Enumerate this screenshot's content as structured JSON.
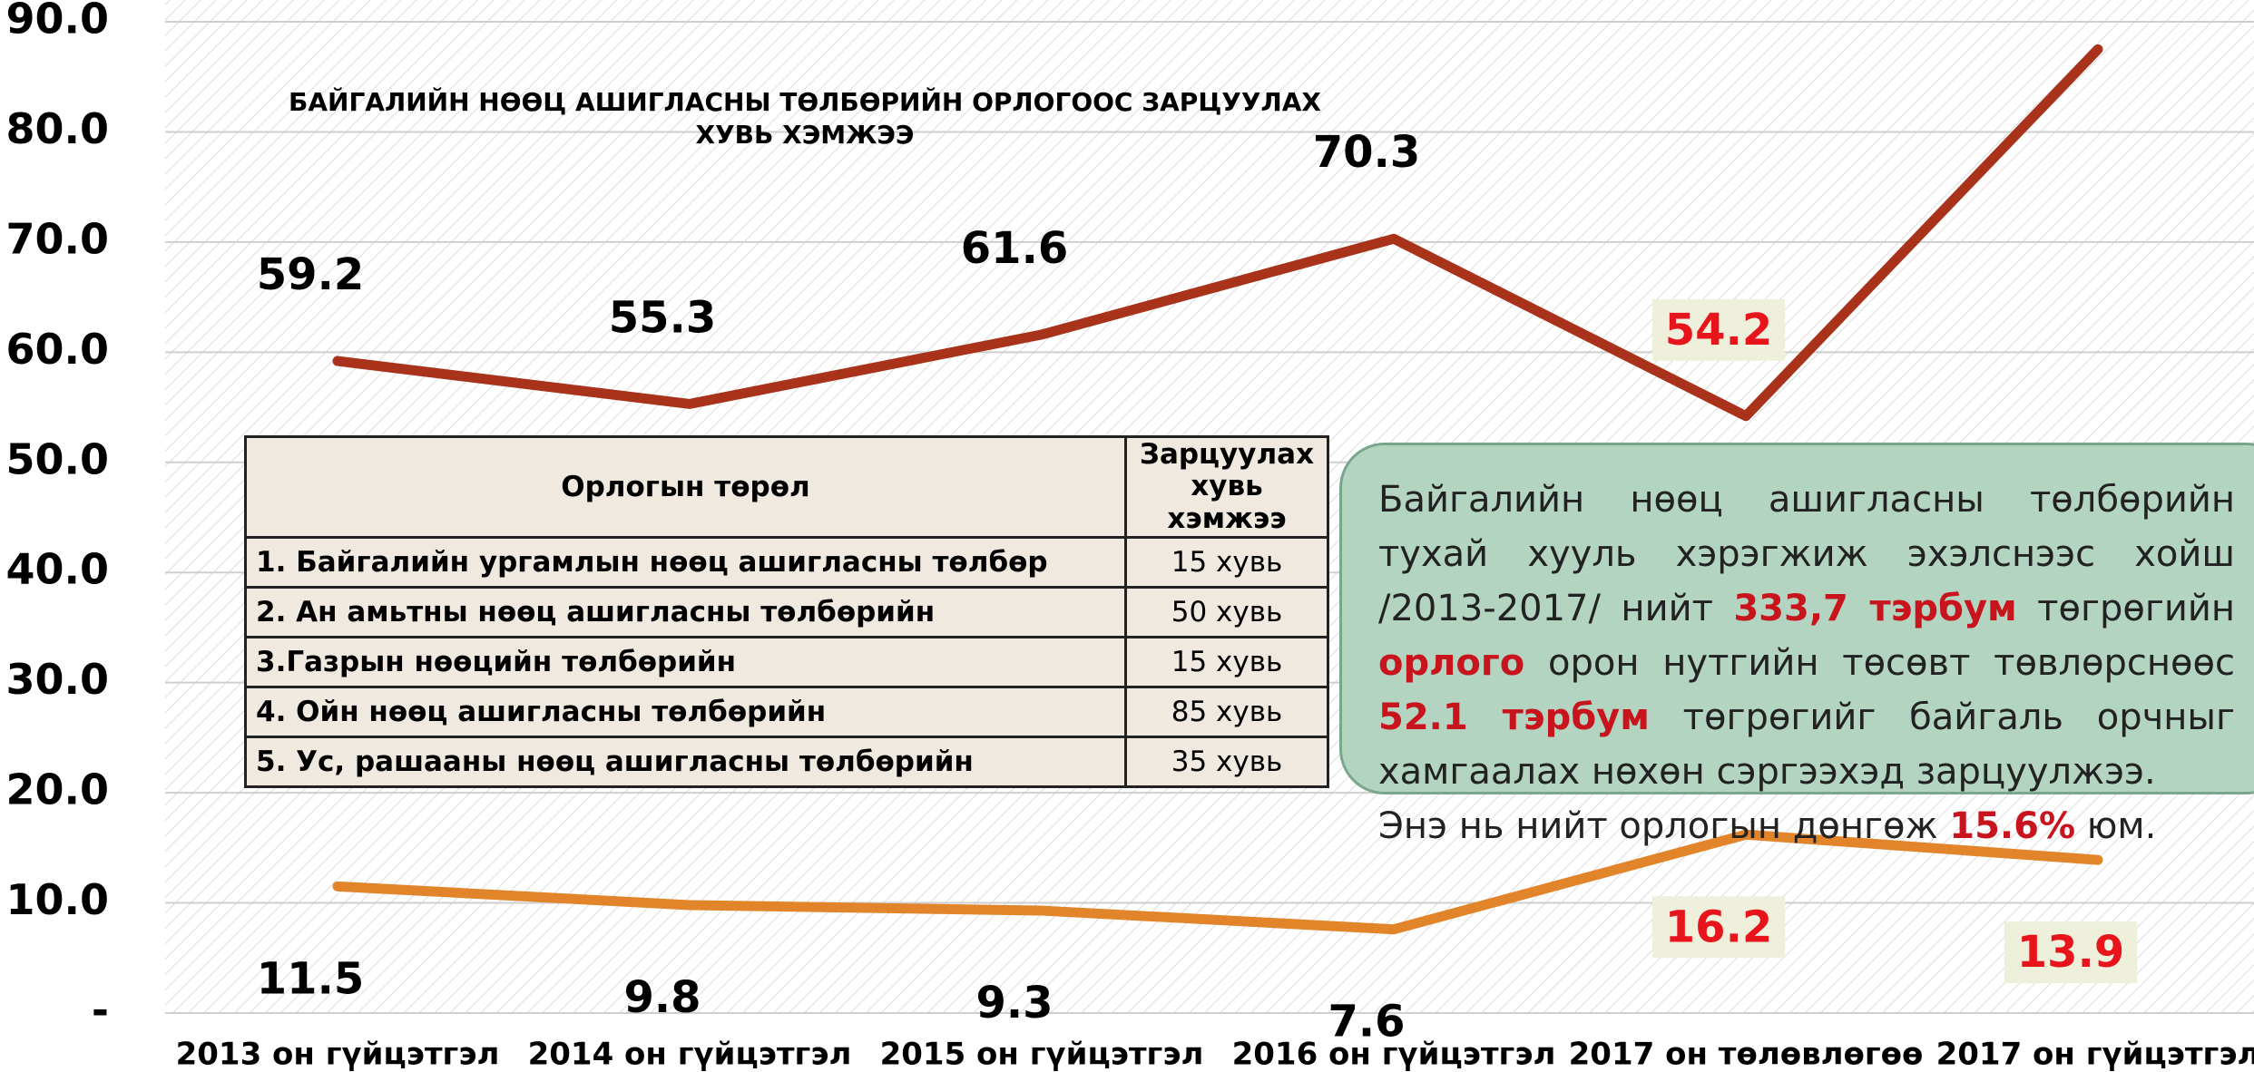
{
  "chart_data": {
    "type": "line",
    "title": "БАЙГАЛИЙН НӨӨЦ АШИГЛАСНЫ ТӨЛБӨРИЙН ОРЛОГООС ЗАРЦУУЛАХ ХУВЬ ХЭМЖЭЭ",
    "categories": [
      "2013 он гүйцэтгэл",
      "2014 он гүйцэтгэл",
      "2015 он гүйцэтгэл",
      "2016 он гүйцэтгэл",
      "2017 он төлөвлөгөө",
      "2017 он гүйцэтгэл"
    ],
    "series": [
      {
        "name": "Series 1",
        "color": "#a8321a",
        "values": [
          59.2,
          55.3,
          61.6,
          70.3,
          54.2,
          87.5
        ],
        "value_labels": [
          "59.2",
          "55.3",
          "61.6",
          "70.3",
          "54.2",
          null
        ],
        "label_colors": [
          "#000000",
          "#000000",
          "#000000",
          "#000000",
          "#e8141c",
          "#000000"
        ],
        "label_backgrounds": [
          null,
          null,
          null,
          null,
          "#eef0dc",
          null
        ],
        "label_position": "above"
      },
      {
        "name": "Series 2",
        "color": "#e2852a",
        "values": [
          11.5,
          9.8,
          9.3,
          7.6,
          16.2,
          13.9
        ],
        "label_colors": [
          "#000000",
          "#000000",
          "#000000",
          "#000000",
          "#e8141c",
          "#e8141c"
        ],
        "label_backgrounds": [
          null,
          null,
          null,
          null,
          "#eef0dc",
          "#eef0dc"
        ],
        "label_position": "below"
      }
    ],
    "ylim": [
      0,
      90
    ],
    "yticks": [
      {
        "value": 0,
        "label": "-"
      },
      {
        "value": 10,
        "label": "10.0"
      },
      {
        "value": 20,
        "label": "20.0"
      },
      {
        "value": 30,
        "label": "30.0"
      },
      {
        "value": 40,
        "label": "40.0"
      },
      {
        "value": 50,
        "label": "50.0"
      },
      {
        "value": 60,
        "label": "60.0"
      },
      {
        "value": 70,
        "label": "70.0"
      },
      {
        "value": 80,
        "label": "80.0"
      },
      {
        "value": 90,
        "label": "90.0"
      }
    ],
    "grid": true,
    "legend": false
  },
  "table": {
    "header": [
      "Орлогын төрөл",
      "Зарцуулах хувь хэмжээ"
    ],
    "rows": [
      [
        "1. Байгалийн ургамлын нөөц ашигласны төлбөр",
        "15 хувь"
      ],
      [
        "2. Ан амьтны нөөц ашигласны төлбөрийн",
        "50 хувь"
      ],
      [
        "3.Газрын нөөцийн төлбөрийн",
        "15 хувь"
      ],
      [
        "4. Ойн нөөц ашигласны төлбөрийн",
        "85 хувь"
      ],
      [
        "5. Ус, рашааны нөөц ашигласны төлбөрийн",
        "35 хувь"
      ]
    ]
  },
  "note": {
    "emphasis_color": "#c8141c",
    "paragraphs": [
      [
        {
          "text": "Байгалийн нөөц ашигласны төлбөрийн тухай хууль хэрэгжиж эхэлснээс хойш /2013-2017/ нийт "
        },
        {
          "text": "333,7 тэрбум",
          "bold": true
        },
        {
          "text": " төгрөгийн "
        },
        {
          "text": "орлого",
          "bold": true
        },
        {
          "text": " орон нутгийн төсөвт төвлөрснөөс "
        },
        {
          "text": "52.1 тэрбум",
          "bold": true
        },
        {
          "text": " төгрөгийг байгаль орчныг хамгаалах нөхөн сэргээхэд зарцуулжээ."
        }
      ],
      [
        {
          "text": "Энэ нь нийт орлогын дөнгөж "
        },
        {
          "text": "15.6%",
          "bold": true
        },
        {
          "text": " юм."
        }
      ]
    ]
  }
}
